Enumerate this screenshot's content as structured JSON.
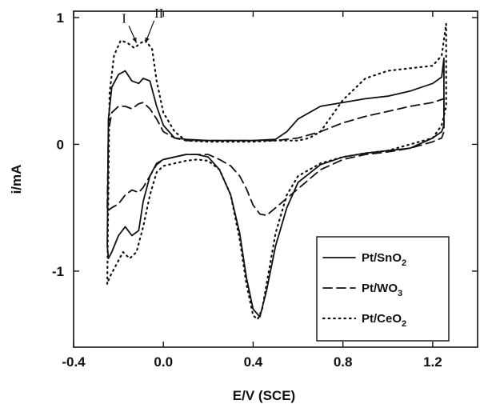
{
  "chart_data": {
    "type": "line",
    "xlabel": "E/V (SCE)",
    "ylabel": "i/mA",
    "xlim": [
      -0.4,
      1.4
    ],
    "ylim": [
      -1.6,
      1.05
    ],
    "xticks": [
      -0.4,
      0.0,
      0.4,
      0.8,
      1.2
    ],
    "xtick_labels": [
      "-0.4",
      "0.0",
      "0.4",
      "0.8",
      "1.2"
    ],
    "yticks": [
      -1,
      0,
      1
    ],
    "ytick_labels": [
      "-1",
      "0",
      "1"
    ],
    "grid": false,
    "legend_position": "bottom-right",
    "annotations": [
      {
        "text": "I",
        "x": -0.175,
        "y": 0.96,
        "arrow_to": [
          -0.12,
          0.8
        ]
      },
      {
        "text": "II",
        "x": -0.02,
        "y": 1.0,
        "arrow_to": [
          -0.08,
          0.8
        ]
      }
    ],
    "series": [
      {
        "name": "Pt/SnO2",
        "name_main": "Pt/SnO",
        "name_sub": "2",
        "style": "solid",
        "color": "#111111",
        "x": [
          -0.25,
          -0.245,
          -0.23,
          -0.2,
          -0.17,
          -0.14,
          -0.11,
          -0.09,
          -0.06,
          -0.03,
          0.0,
          0.05,
          0.1,
          0.2,
          0.3,
          0.4,
          0.5,
          0.55,
          0.6,
          0.7,
          0.8,
          0.9,
          1.0,
          1.1,
          1.2,
          1.24,
          1.25,
          1.25,
          1.24,
          1.2,
          1.1,
          1.0,
          0.9,
          0.8,
          0.7,
          0.6,
          0.55,
          0.5,
          0.46,
          0.43,
          0.4,
          0.37,
          0.34,
          0.3,
          0.25,
          0.2,
          0.15,
          0.1,
          0.05,
          0.0,
          -0.03,
          -0.06,
          -0.09,
          -0.11,
          -0.14,
          -0.17,
          -0.2,
          -0.23,
          -0.245,
          -0.25
        ],
        "y": [
          -0.8,
          0.2,
          0.45,
          0.55,
          0.58,
          0.5,
          0.48,
          0.52,
          0.5,
          0.3,
          0.15,
          0.05,
          0.04,
          0.03,
          0.03,
          0.03,
          0.04,
          0.1,
          0.2,
          0.3,
          0.33,
          0.36,
          0.38,
          0.42,
          0.48,
          0.53,
          0.68,
          0.15,
          0.1,
          0.05,
          -0.03,
          -0.05,
          -0.07,
          -0.1,
          -0.16,
          -0.3,
          -0.5,
          -0.8,
          -1.15,
          -1.36,
          -1.3,
          -1.05,
          -0.7,
          -0.4,
          -0.2,
          -0.1,
          -0.08,
          -0.08,
          -0.1,
          -0.12,
          -0.15,
          -0.25,
          -0.45,
          -0.68,
          -0.72,
          -0.65,
          -0.72,
          -0.85,
          -0.9,
          -0.8
        ]
      },
      {
        "name": "Pt/WO3",
        "name_main": "Pt/WO",
        "name_sub": "3",
        "style": "dashed",
        "color": "#111111",
        "x": [
          -0.25,
          -0.245,
          -0.23,
          -0.2,
          -0.17,
          -0.14,
          -0.11,
          -0.09,
          -0.06,
          -0.03,
          0.0,
          0.05,
          0.1,
          0.2,
          0.3,
          0.4,
          0.5,
          0.6,
          0.7,
          0.8,
          0.9,
          1.0,
          1.1,
          1.2,
          1.25,
          1.25,
          1.24,
          1.2,
          1.1,
          1.0,
          0.9,
          0.8,
          0.7,
          0.6,
          0.5,
          0.46,
          0.43,
          0.4,
          0.37,
          0.34,
          0.3,
          0.25,
          0.2,
          0.15,
          0.1,
          0.05,
          0.0,
          -0.03,
          -0.06,
          -0.09,
          -0.11,
          -0.14,
          -0.17,
          -0.2,
          -0.23,
          -0.245,
          -0.25
        ],
        "y": [
          -0.5,
          0.1,
          0.25,
          0.3,
          0.3,
          0.28,
          0.32,
          0.33,
          0.28,
          0.2,
          0.1,
          0.05,
          0.03,
          0.03,
          0.03,
          0.03,
          0.03,
          0.05,
          0.1,
          0.17,
          0.22,
          0.26,
          0.3,
          0.33,
          0.36,
          0.1,
          0.05,
          0.02,
          -0.03,
          -0.06,
          -0.08,
          -0.12,
          -0.2,
          -0.35,
          -0.5,
          -0.56,
          -0.55,
          -0.48,
          -0.35,
          -0.25,
          -0.17,
          -0.12,
          -0.08,
          -0.08,
          -0.08,
          -0.1,
          -0.12,
          -0.16,
          -0.25,
          -0.34,
          -0.38,
          -0.36,
          -0.4,
          -0.47,
          -0.5,
          -0.52,
          -0.5
        ]
      },
      {
        "name": "Pt/CeO2",
        "name_main": "Pt/CeO",
        "name_sub": "2",
        "style": "dotted",
        "color": "#111111",
        "x": [
          -0.25,
          -0.24,
          -0.22,
          -0.19,
          -0.16,
          -0.13,
          -0.1,
          -0.08,
          -0.05,
          -0.03,
          0.0,
          0.05,
          0.1,
          0.2,
          0.3,
          0.4,
          0.5,
          0.6,
          0.65,
          0.7,
          0.8,
          0.9,
          1.0,
          1.1,
          1.2,
          1.24,
          1.26,
          1.26,
          1.24,
          1.2,
          1.1,
          1.0,
          0.9,
          0.8,
          0.7,
          0.6,
          0.55,
          0.5,
          0.47,
          0.44,
          0.42,
          0.4,
          0.37,
          0.34,
          0.3,
          0.25,
          0.2,
          0.15,
          0.1,
          0.05,
          0.0,
          -0.03,
          -0.06,
          -0.09,
          -0.12,
          -0.15,
          -0.18,
          -0.21,
          -0.24,
          -0.25
        ],
        "y": [
          -1.1,
          0.4,
          0.7,
          0.82,
          0.8,
          0.76,
          0.8,
          0.82,
          0.75,
          0.5,
          0.25,
          0.1,
          0.03,
          0.02,
          0.02,
          0.02,
          0.03,
          0.03,
          0.05,
          0.1,
          0.35,
          0.52,
          0.58,
          0.6,
          0.62,
          0.7,
          0.95,
          0.3,
          0.15,
          0.05,
          0.0,
          -0.05,
          -0.07,
          -0.1,
          -0.15,
          -0.25,
          -0.4,
          -0.7,
          -1.0,
          -1.3,
          -1.38,
          -1.35,
          -1.1,
          -0.75,
          -0.4,
          -0.2,
          -0.13,
          -0.12,
          -0.13,
          -0.15,
          -0.17,
          -0.22,
          -0.4,
          -0.65,
          -0.85,
          -0.9,
          -0.85,
          -0.95,
          -1.05,
          -1.1
        ]
      }
    ]
  }
}
